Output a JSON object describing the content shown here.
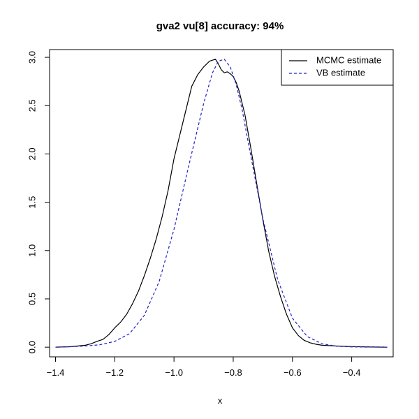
{
  "chart_data": {
    "type": "line",
    "title": "gva2 vu[8] accuracy: 94%",
    "xlabel": "x",
    "ylabel": "",
    "xlim": [
      -1.42,
      -0.26
    ],
    "ylim": [
      -0.1,
      3.08
    ],
    "xticks": [
      -1.4,
      -1.2,
      -1.0,
      -0.8,
      -0.6,
      -0.4
    ],
    "xtick_labels": [
      "−1.4",
      "−1.2",
      "−1.0",
      "−0.8",
      "−0.6",
      "−0.4"
    ],
    "yticks": [
      0.0,
      0.5,
      1.0,
      1.5,
      2.0,
      2.5,
      3.0
    ],
    "ytick_labels": [
      "0.0",
      "0.5",
      "1.0",
      "1.5",
      "2.0",
      "2.5",
      "3.0"
    ],
    "grid": false,
    "legend_position": "top-right",
    "series": [
      {
        "name": "MCMC estimate",
        "color": "#000000",
        "dash": "solid",
        "x": [
          -1.4,
          -1.35,
          -1.3,
          -1.28,
          -1.26,
          -1.24,
          -1.22,
          -1.2,
          -1.18,
          -1.16,
          -1.14,
          -1.12,
          -1.1,
          -1.08,
          -1.06,
          -1.04,
          -1.02,
          -1.0,
          -0.98,
          -0.96,
          -0.94,
          -0.92,
          -0.9,
          -0.88,
          -0.86,
          -0.85,
          -0.84,
          -0.83,
          -0.82,
          -0.81,
          -0.8,
          -0.79,
          -0.78,
          -0.76,
          -0.74,
          -0.72,
          -0.7,
          -0.68,
          -0.66,
          -0.64,
          -0.62,
          -0.6,
          -0.58,
          -0.56,
          -0.54,
          -0.52,
          -0.5,
          -0.45,
          -0.4,
          -0.35,
          -0.28
        ],
        "y": [
          0.0,
          0.005,
          0.02,
          0.035,
          0.06,
          0.08,
          0.13,
          0.2,
          0.26,
          0.34,
          0.45,
          0.58,
          0.74,
          0.92,
          1.12,
          1.35,
          1.62,
          1.95,
          2.2,
          2.45,
          2.7,
          2.82,
          2.9,
          2.96,
          2.98,
          2.93,
          2.87,
          2.84,
          2.85,
          2.83,
          2.8,
          2.74,
          2.65,
          2.4,
          2.05,
          1.68,
          1.32,
          0.99,
          0.73,
          0.52,
          0.34,
          0.2,
          0.12,
          0.07,
          0.045,
          0.03,
          0.02,
          0.012,
          0.006,
          0.003,
          0.0
        ]
      },
      {
        "name": "VB estimate",
        "color": "#2020c8",
        "dash": "dashed",
        "x": [
          -1.4,
          -1.35,
          -1.3,
          -1.25,
          -1.2,
          -1.15,
          -1.1,
          -1.05,
          -1.0,
          -0.95,
          -0.9,
          -0.87,
          -0.85,
          -0.83,
          -0.81,
          -0.79,
          -0.77,
          -0.75,
          -0.7,
          -0.65,
          -0.6,
          -0.55,
          -0.5,
          -0.45,
          -0.4,
          -0.35,
          -0.28
        ],
        "y": [
          0.0,
          0.005,
          0.012,
          0.025,
          0.06,
          0.14,
          0.33,
          0.68,
          1.22,
          1.88,
          2.52,
          2.84,
          2.96,
          2.98,
          2.9,
          2.72,
          2.46,
          2.13,
          1.33,
          0.7,
          0.3,
          0.11,
          0.035,
          0.01,
          0.003,
          0.001,
          0.0
        ]
      }
    ]
  }
}
